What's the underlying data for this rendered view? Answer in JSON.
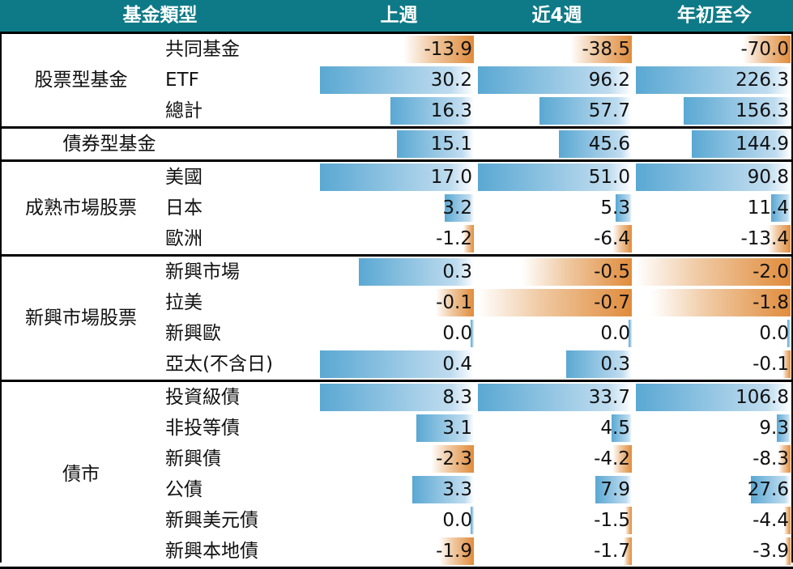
{
  "chart_data": {
    "type": "table",
    "columns": [
      "基金類型",
      "上週",
      "近4週",
      "年初至今"
    ],
    "groups": [
      {
        "name": "股票型基金",
        "rows": [
          {
            "label": "共同基金",
            "values": [
              -13.9,
              -38.5,
              -70.0
            ]
          },
          {
            "label": "ETF",
            "values": [
              30.2,
              96.2,
              226.3
            ]
          },
          {
            "label": "總計",
            "values": [
              16.3,
              57.7,
              156.3
            ]
          }
        ]
      },
      {
        "name": "債券型基金",
        "rows": [
          {
            "label": "",
            "values": [
              15.1,
              45.6,
              144.9
            ]
          }
        ]
      },
      {
        "name": "成熟市場股票",
        "rows": [
          {
            "label": "美國",
            "values": [
              17.0,
              51.0,
              90.8
            ]
          },
          {
            "label": "日本",
            "values": [
              3.2,
              5.3,
              11.4
            ]
          },
          {
            "label": "歐洲",
            "values": [
              -1.2,
              -6.4,
              -13.4
            ]
          }
        ]
      },
      {
        "name": "新興市場股票",
        "rows": [
          {
            "label": "新興市場",
            "values": [
              0.3,
              -0.5,
              -2.0
            ]
          },
          {
            "label": "拉美",
            "values": [
              -0.1,
              -0.7,
              -1.8
            ]
          },
          {
            "label": "新興歐",
            "values": [
              0.0,
              0.0,
              0.0
            ]
          },
          {
            "label": "亞太(不含日)",
            "values": [
              0.4,
              0.3,
              -0.1
            ]
          }
        ]
      },
      {
        "name": "債市",
        "rows": [
          {
            "label": "投資級債",
            "values": [
              8.3,
              33.7,
              106.8
            ]
          },
          {
            "label": "非投等債",
            "values": [
              3.1,
              4.5,
              9.3
            ]
          },
          {
            "label": "新興債",
            "values": [
              -2.3,
              -4.2,
              -8.3
            ]
          },
          {
            "label": "公債",
            "values": [
              3.3,
              7.9,
              27.6
            ]
          },
          {
            "label": "新興美元債",
            "values": [
              0.0,
              -1.5,
              -4.4
            ]
          },
          {
            "label": "新興本地債",
            "values": [
              -1.9,
              -1.7,
              -3.9
            ]
          }
        ]
      }
    ],
    "colors": {
      "header": "#0f7a87",
      "positive": "#5aa8d3",
      "negative": "#e08c3c"
    }
  }
}
